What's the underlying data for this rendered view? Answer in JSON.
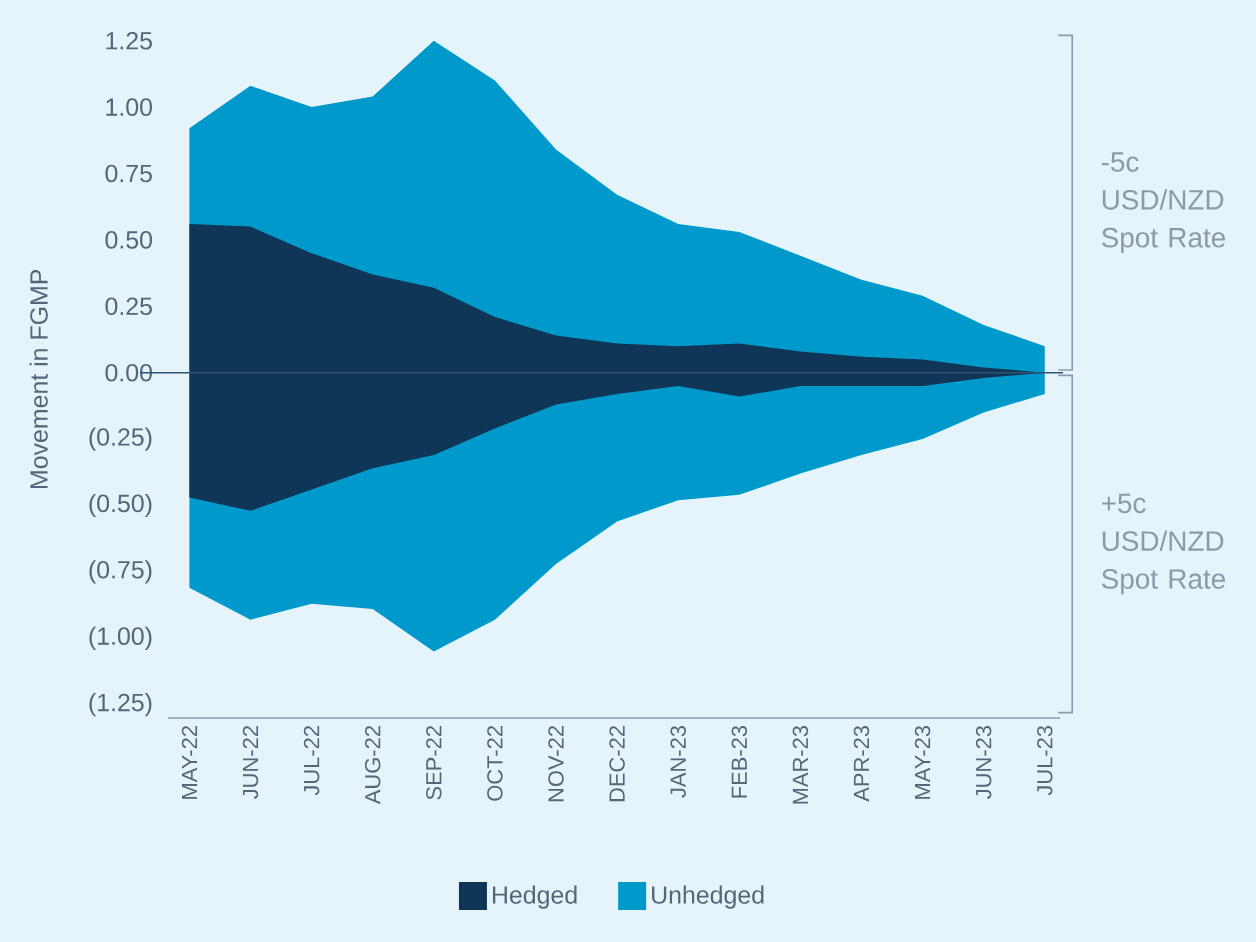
{
  "chart_data": {
    "type": "area",
    "ylabel": "Movement in FGMP",
    "categories": [
      "MAY-22",
      "JUN-22",
      "JUL-22",
      "AUG-22",
      "SEP-22",
      "OCT-22",
      "NOV-22",
      "DEC-22",
      "JAN-23",
      "FEB-23",
      "MAR-23",
      "APR-23",
      "MAY-23",
      "JUN-23",
      "JUL-23"
    ],
    "series": [
      {
        "name": "Hedged",
        "color": "#0f3557",
        "values": [
          0.56,
          0.55,
          0.45,
          0.37,
          0.32,
          0.21,
          0.14,
          0.11,
          0.1,
          0.11,
          0.08,
          0.06,
          0.05,
          0.02,
          0
        ]
      },
      {
        "color": "#0f3557",
        "values": [
          -0.47,
          -0.52,
          -0.44,
          -0.36,
          -0.31,
          -0.21,
          -0.12,
          -0.08,
          -0.05,
          -0.09,
          -0.05,
          -0.05,
          -0.05,
          -0.02,
          0
        ]
      },
      {
        "name": "Unhedged",
        "color": "#0099cc",
        "values": [
          0.92,
          1.08,
          1.0,
          1.04,
          1.25,
          1.1,
          0.84,
          0.67,
          0.56,
          0.53,
          0.44,
          0.35,
          0.29,
          0.18,
          0.1
        ]
      },
      {
        "color": "#0099cc",
        "values": [
          -0.81,
          -0.93,
          -0.87,
          -0.89,
          -1.05,
          -0.93,
          -0.72,
          -0.56,
          -0.48,
          -0.46,
          -0.38,
          -0.31,
          -0.25,
          -0.15,
          -0.08
        ]
      }
    ],
    "ylim": [
      -1.3,
      1.25
    ],
    "yticks": [
      {
        "value": -1.25,
        "label": "(1.25)"
      },
      {
        "value": -1.0,
        "label": "(1.00)"
      },
      {
        "value": -0.75,
        "label": "(0.75)"
      },
      {
        "value": -0.5,
        "label": "(0.50)"
      },
      {
        "value": -0.25,
        "label": "(0.25)"
      },
      {
        "value": 0,
        "label": "0.00"
      },
      {
        "value": 0.25,
        "label": "0.25"
      },
      {
        "value": 0.5,
        "label": "0.50"
      },
      {
        "value": 0.75,
        "label": "0.75"
      },
      {
        "value": 1.0,
        "label": "1.00"
      },
      {
        "value": 1.25,
        "label": "1.25"
      }
    ],
    "ref_lines": [
      {
        "axis": "y",
        "value": 0,
        "color": "#2f5573"
      }
    ],
    "annotations": [
      "-5c USD/NZD Spot Rate",
      "+5c USD/NZD Spot Rate"
    ],
    "legend": "bottom"
  }
}
